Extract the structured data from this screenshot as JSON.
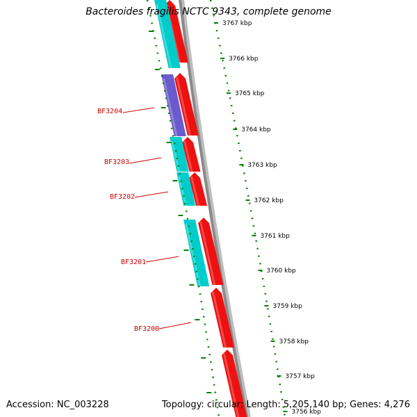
{
  "title": "Bacteroides fragilis NCTC 9343, complete genome",
  "accession": "Accession: NC_003228",
  "summary": "Topology: circular; Length: 5,205,140 bp; Genes: 4,276",
  "colors": {
    "background": "#ffffff",
    "backbone": "#8a8a8a",
    "ruler_ticks": "#008000",
    "cds_forward": "#ee1111",
    "cds_reverse": "#00cccc",
    "gene_special": "#6a5acd",
    "gene_label": "#cc0000"
  },
  "ruler": {
    "unit": "kbp",
    "labels": [
      "3767 kbp",
      "3766 kbp",
      "3765 kbp",
      "3764 kbp",
      "3763 kbp",
      "3762 kbp",
      "3761 kbp",
      "3760 kbp",
      "3759 kbp",
      "3758 kbp",
      "3757 kbp",
      "3756 kbp"
    ],
    "positions_kbp": [
      3767,
      3766,
      3765,
      3764,
      3763,
      3762,
      3761,
      3760,
      3759,
      3758,
      3757,
      3756
    ]
  },
  "genes": [
    {
      "label": "BF3204",
      "color_key": "gene_special"
    },
    {
      "label": "BF3203",
      "color_key": "cds_reverse"
    },
    {
      "label": "BF3202",
      "color_key": "cds_reverse"
    },
    {
      "label": "BF3201",
      "color_key": "cds_reverse"
    },
    {
      "label": "BF3200",
      "color_key": "cds_forward"
    }
  ]
}
